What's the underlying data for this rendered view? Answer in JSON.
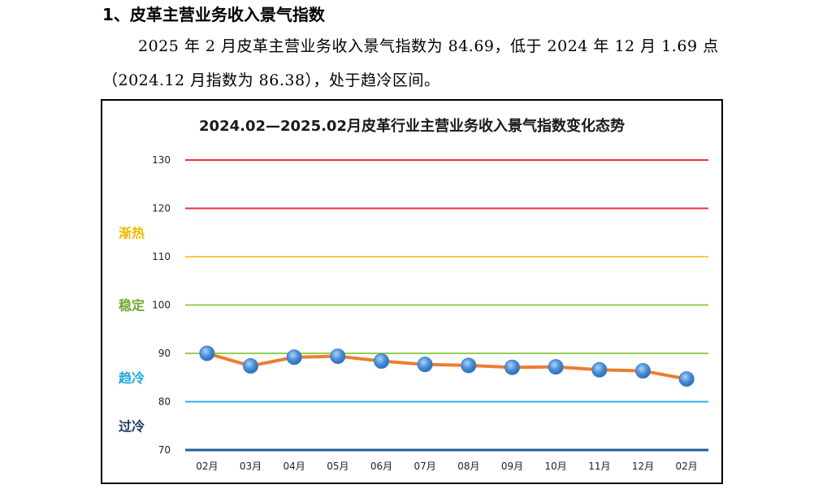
{
  "section": {
    "heading": "1、皮革主营业务收入景气指数",
    "paragraph": "2025 年 2 月皮革主营业务收入景气指数为 84.69，低于 2024 年 12 月 1.69 点（2024.12 月指数为 86.38），处于趋冷区间。"
  },
  "chart_data": {
    "type": "line",
    "title": "2024.02—2025.02月皮革行业主营业务收入景气指数变化态势",
    "categories": [
      "02月",
      "03月",
      "04月",
      "05月",
      "06月",
      "07月",
      "08月",
      "09月",
      "10月",
      "11月",
      "12月",
      "02月"
    ],
    "series": [
      {
        "values": [
          90.0,
          87.4,
          89.2,
          89.4,
          88.4,
          87.7,
          87.5,
          87.1,
          87.2,
          86.6,
          86.38,
          84.69
        ],
        "color": "#ed7d31",
        "marker_color": "#4f8fd6"
      }
    ],
    "ylim": [
      70,
      130
    ],
    "yticks": [
      70,
      80,
      90,
      100,
      110,
      120,
      130
    ],
    "grid_lines": [
      {
        "value": 130,
        "color": "#e8313a"
      },
      {
        "value": 120,
        "color": "#e8313a"
      },
      {
        "value": 110,
        "color": "#ffc93c"
      },
      {
        "value": 100,
        "color": "#92d050"
      },
      {
        "value": 90,
        "color": "#92d050"
      },
      {
        "value": 80,
        "color": "#2fb2e6"
      },
      {
        "value": 70,
        "color": "#1f5f99"
      }
    ],
    "zones": [
      {
        "label": "渐热",
        "value": 115,
        "color": "#f2b800"
      },
      {
        "label": "稳定",
        "value": 100,
        "color": "#6fa832"
      },
      {
        "label": "趋冷",
        "value": 85,
        "color": "#1ca6e0"
      },
      {
        "label": "过冷",
        "value": 75,
        "color": "#1f3864"
      }
    ],
    "legend": "none"
  }
}
